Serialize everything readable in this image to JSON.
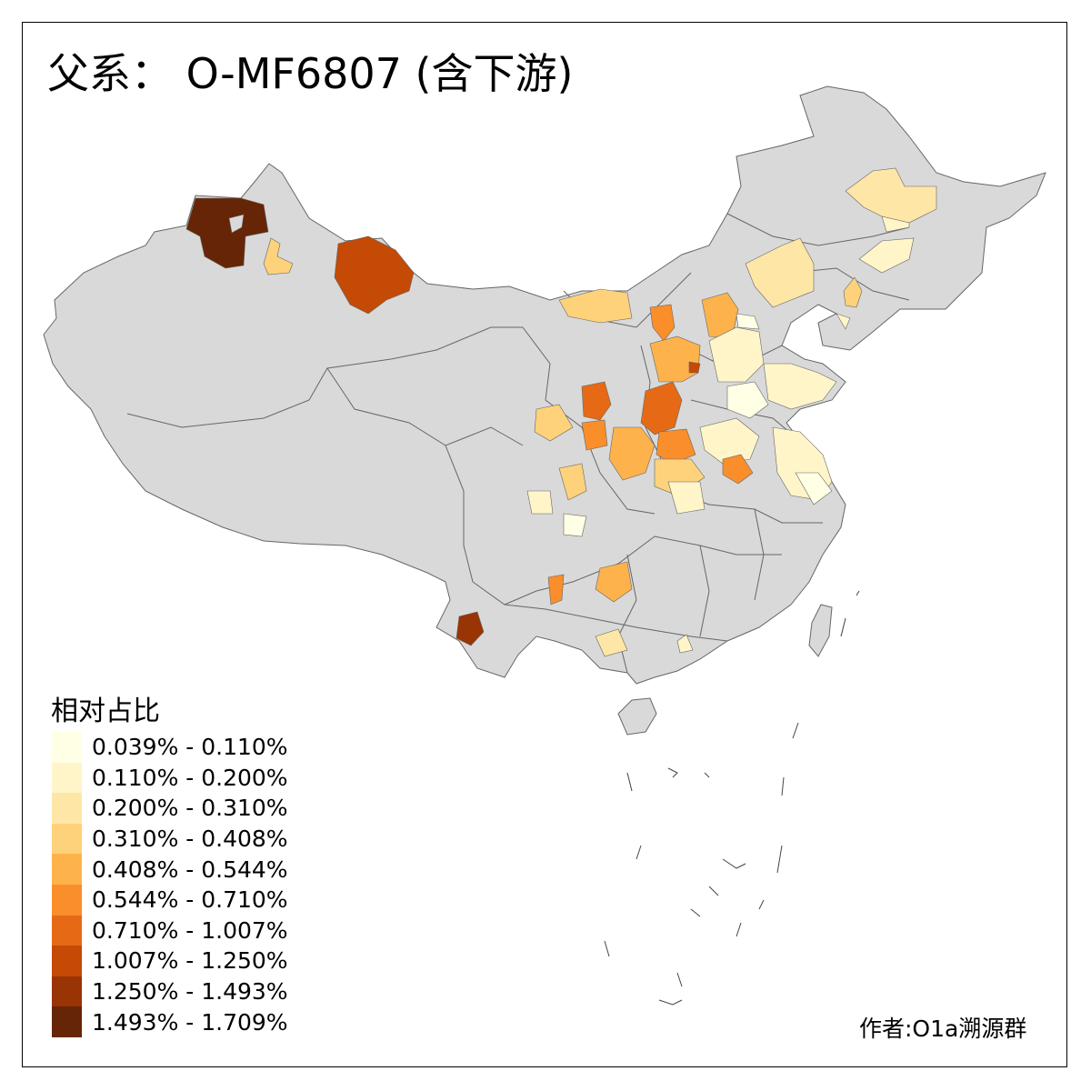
{
  "title": "父系： O-MF6807 (含下游)",
  "legend": {
    "title": "相对占比",
    "items": [
      {
        "label": "0.039% - 0.110%",
        "color": "#FFFFE6"
      },
      {
        "label": "0.110% - 0.200%",
        "color": "#FFF5C9"
      },
      {
        "label": "0.200% - 0.310%",
        "color": "#FEE6A6"
      },
      {
        "label": "0.310% - 0.408%",
        "color": "#FED27A"
      },
      {
        "label": "0.408% - 0.544%",
        "color": "#FEB24C"
      },
      {
        "label": "0.544% - 0.710%",
        "color": "#F98E2B"
      },
      {
        "label": "0.710% - 1.007%",
        "color": "#E66A16"
      },
      {
        "label": "1.007% - 1.250%",
        "color": "#C44A06"
      },
      {
        "label": "1.250% - 1.493%",
        "color": "#993404"
      },
      {
        "label": "1.493% - 1.709%",
        "color": "#662506"
      }
    ]
  },
  "credit": "作者:O1a溯源群",
  "map": {
    "base_fill": "#D9D9D9",
    "border_color": "#666666"
  }
}
